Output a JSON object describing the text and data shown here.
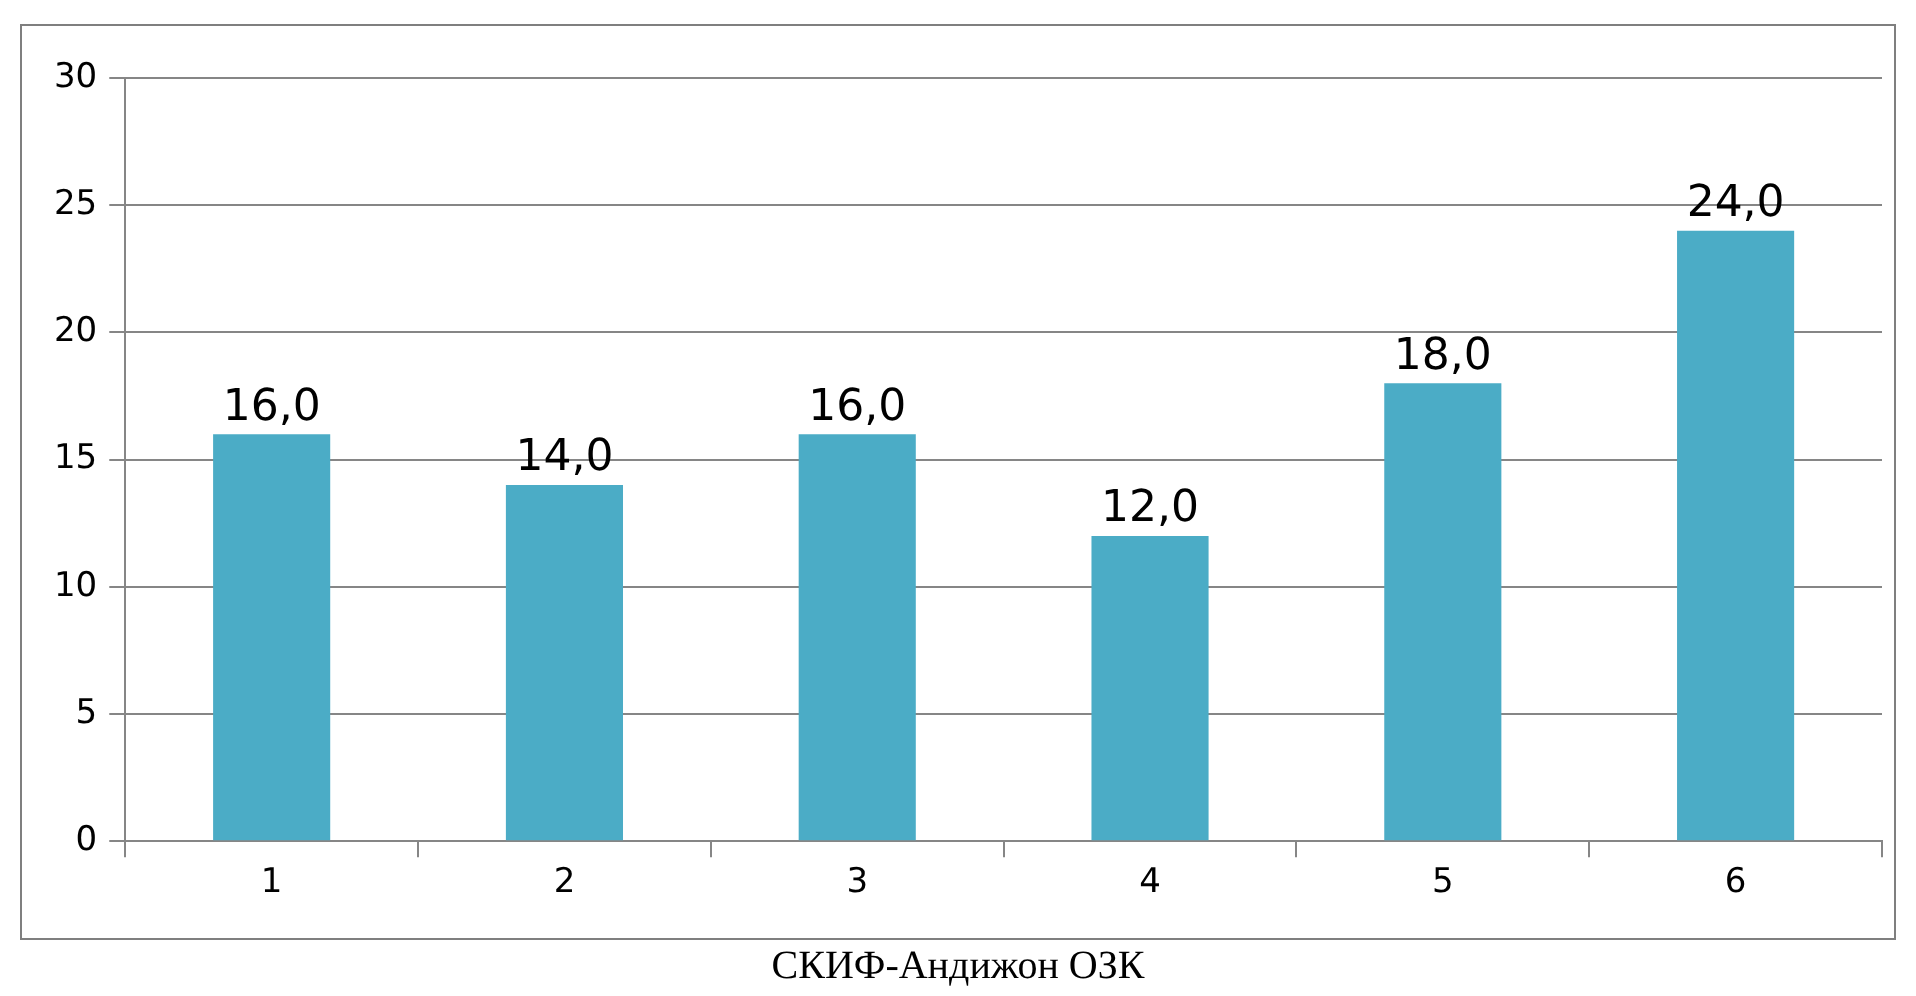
{
  "chart_data": {
    "type": "bar",
    "xlabel": "СКИФ-Андижон ОЗК",
    "categories": [
      "1",
      "2",
      "3",
      "4",
      "5",
      "6"
    ],
    "values": [
      16,
      14,
      16,
      12,
      18,
      24
    ],
    "value_labels": [
      "16,0",
      "14,0",
      "16,0",
      "12,0",
      "18,0",
      "24,0"
    ],
    "color": "#4bacc6",
    "ylim": [
      0,
      30
    ],
    "yticks": [
      0,
      5,
      10,
      15,
      20,
      25,
      30
    ],
    "grid": "y",
    "legend": false
  }
}
